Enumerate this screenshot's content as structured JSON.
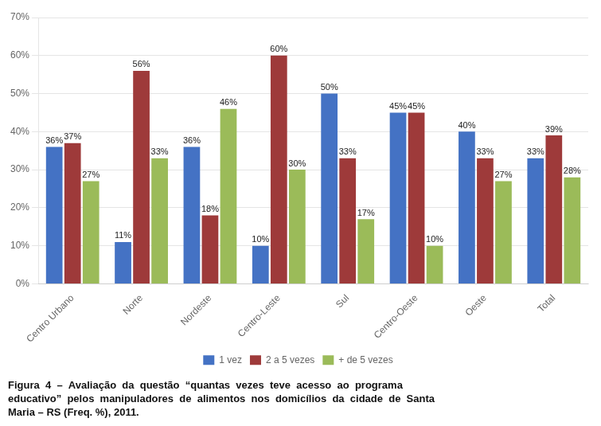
{
  "chart_data": {
    "type": "bar",
    "categories": [
      "Centro Urbano",
      "Norte",
      "Nordeste",
      "Centro-Leste",
      "Sul",
      "Centro-Oeste",
      "Oeste",
      "Total"
    ],
    "series": [
      {
        "name": "1 vez",
        "color": "#4472C4",
        "values": [
          36,
          11,
          36,
          10,
          50,
          45,
          40,
          33
        ],
        "value_labels": [
          "36%",
          "11%",
          "36%",
          "10%",
          "50%",
          "45%",
          "40%",
          "33%"
        ]
      },
      {
        "name": "2 a 5 vezes",
        "color": "#9E3A3A",
        "values": [
          37,
          56,
          18,
          60,
          33,
          45,
          33,
          39
        ],
        "value_labels": [
          "37%",
          "56%",
          "18%",
          "60%",
          "33%",
          "45%",
          "33%",
          "39%"
        ]
      },
      {
        "name": "+ de 5 vezes",
        "color": "#9BBB59",
        "values": [
          27,
          33,
          46,
          30,
          17,
          10,
          27,
          28
        ],
        "value_labels": [
          "27%",
          "33%",
          "46%",
          "30%",
          "17%",
          "10%",
          "27%",
          "28%"
        ]
      }
    ],
    "ylim": [
      0,
      70
    ],
    "yticks": [
      {
        "value": 0,
        "label": "0%"
      },
      {
        "value": 10,
        "label": "10%"
      },
      {
        "value": 20,
        "label": "20%"
      },
      {
        "value": 30,
        "label": "30%"
      },
      {
        "value": 40,
        "label": "40%"
      },
      {
        "value": 50,
        "label": "50%"
      },
      {
        "value": 60,
        "label": "60%"
      },
      {
        "value": 70,
        "label": "70%"
      }
    ],
    "grid": true,
    "legend": "bottom",
    "data_labels": true,
    "annotations": [
      "Figura  4  –  Avaliação  da  questão  “quantas  vezes  teve  acesso  ao  programa",
      "educativo”  pelos  manipuladores  de  alimentos  nos  domicílios  da  cidade  de  Santa",
      "Maria – RS (Freq. %), 2011."
    ]
  }
}
